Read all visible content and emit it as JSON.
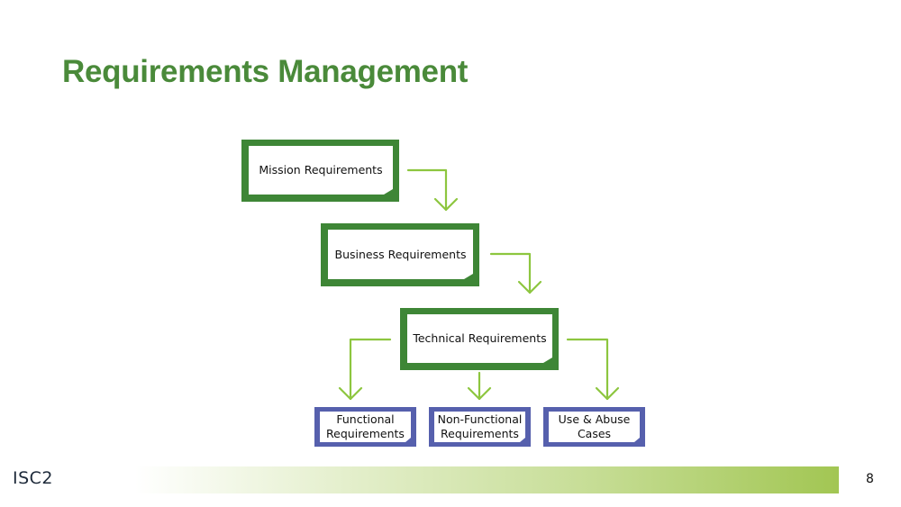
{
  "slide": {
    "title": "Requirements Management",
    "page_number": "8",
    "logo_text": "ISC2"
  },
  "diagram": {
    "mission": "Mission Requirements",
    "business": "Business Requirements",
    "technical": "Technical Requirements",
    "functional": "Functional Requirements",
    "non_functional": "Non-Functional Requirements",
    "use_abuse": "Use & Abuse Cases"
  },
  "colors": {
    "title": "#4a8a3a",
    "green_box": "#3e8636",
    "blue_box": "#5660ad",
    "arrow": "#8dc63f"
  }
}
